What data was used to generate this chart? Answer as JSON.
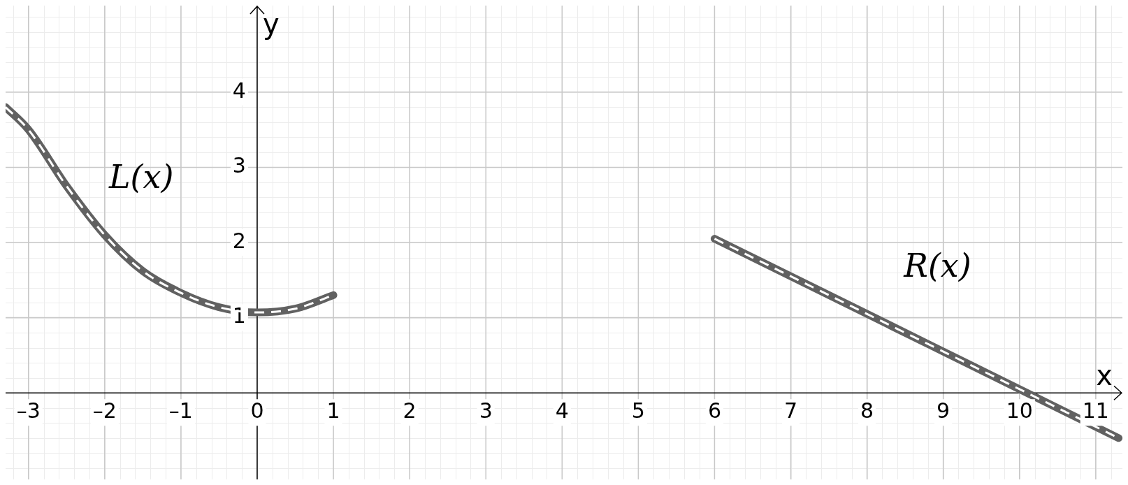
{
  "chart_data": {
    "type": "line",
    "xlabel": "x",
    "ylabel": "y",
    "series": [
      {
        "name": "L(x)",
        "color": "#616161",
        "x": [
          -3.3,
          -3,
          -2.5,
          -2,
          -1.5,
          -1,
          -0.5,
          0,
          0.5,
          1
        ],
        "values": [
          3.8,
          3.5,
          2.75,
          2.1,
          1.62,
          1.33,
          1.14,
          1.07,
          1.12,
          1.3
        ]
      },
      {
        "name": "R(x)",
        "color": "#616161",
        "x": [
          6,
          11.3
        ],
        "values": [
          2.05,
          -0.6
        ]
      }
    ],
    "xlim": [
      -3.3,
      11.35
    ],
    "ylim": [
      -1.15,
      5.15
    ],
    "xticks": [
      {
        "value": -3,
        "label": "–3"
      },
      {
        "value": -2,
        "label": "–2"
      },
      {
        "value": -1,
        "label": "–1"
      },
      0,
      1,
      2,
      3,
      4,
      5,
      6,
      7,
      8,
      9,
      10,
      11
    ],
    "yticks": [
      1,
      2,
      3,
      4
    ],
    "grid": true,
    "legend": false,
    "marker": "none"
  }
}
